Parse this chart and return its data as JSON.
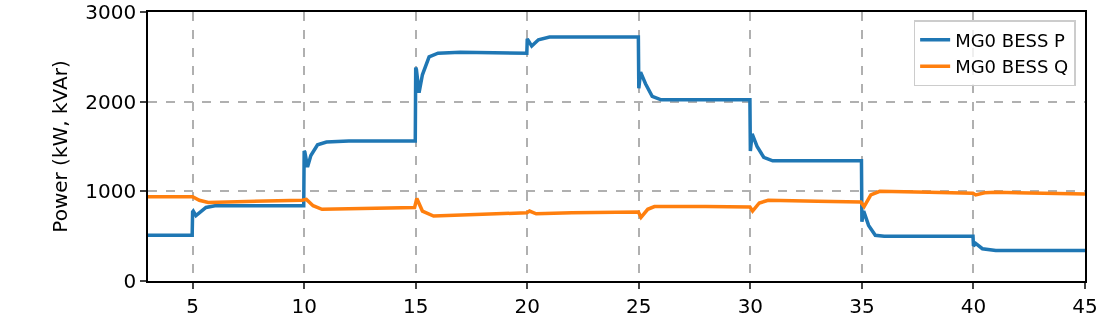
{
  "chart_data": {
    "type": "line",
    "ylabel": "Power (kW, kVAr)",
    "xlim": [
      3,
      45
    ],
    "ylim": [
      0,
      3000
    ],
    "xticks": [
      5,
      10,
      15,
      20,
      25,
      30,
      35,
      40,
      45
    ],
    "yticks": [
      0,
      1000,
      2000,
      3000
    ],
    "grid": true,
    "legend": "top right",
    "line_style": "solid",
    "marker": "none",
    "series": [
      {
        "name": "MG0 BESS P",
        "color": "#1f77b4",
        "x": [
          3,
          4.98,
          5,
          5.03,
          5.15,
          5.3,
          5.6,
          6,
          8,
          9.98,
          10,
          10.03,
          10.15,
          10.3,
          10.6,
          11,
          12,
          14.98,
          15,
          15.03,
          15.15,
          15.3,
          15.6,
          16,
          17,
          19.98,
          20,
          20.05,
          20.2,
          20.5,
          21,
          24.98,
          25,
          25.08,
          25.3,
          25.6,
          26,
          29.98,
          30,
          30.08,
          30.3,
          30.6,
          31,
          34.98,
          35,
          35.08,
          35.3,
          35.6,
          36,
          39.98,
          40,
          40.1,
          40.4,
          41,
          45
        ],
        "values": [
          510,
          510,
          770,
          780,
          730,
          760,
          820,
          840,
          840,
          840,
          1450,
          1440,
          1270,
          1400,
          1520,
          1550,
          1560,
          1560,
          2380,
          2360,
          2100,
          2300,
          2500,
          2540,
          2550,
          2540,
          2700,
          2680,
          2620,
          2690,
          2720,
          2720,
          2150,
          2330,
          2200,
          2060,
          2020,
          2020,
          1450,
          1640,
          1500,
          1380,
          1340,
          1340,
          660,
          780,
          620,
          510,
          500,
          500,
          390,
          420,
          360,
          340,
          340
        ]
      },
      {
        "name": "MG0 BESS Q",
        "color": "#ff7f0e",
        "x": [
          3,
          5,
          5.3,
          5.7,
          7,
          9.9,
          10.1,
          10.4,
          10.8,
          12,
          14.95,
          15.05,
          15.3,
          15.8,
          18,
          19.98,
          20.1,
          20.4,
          22,
          24.98,
          25.1,
          25.4,
          25.7,
          28,
          29.98,
          30.1,
          30.4,
          30.8,
          33,
          34.95,
          35.1,
          35.4,
          35.8,
          38,
          39.98,
          40.1,
          40.5,
          41,
          45
        ],
        "values": [
          940,
          940,
          900,
          875,
          885,
          900,
          910,
          840,
          800,
          805,
          820,
          920,
          780,
          725,
          745,
          760,
          780,
          750,
          760,
          770,
          710,
          800,
          830,
          830,
          825,
          780,
          870,
          900,
          890,
          880,
          830,
          960,
          1000,
          990,
          980,
          960,
          985,
          990,
          970
        ]
      }
    ]
  }
}
